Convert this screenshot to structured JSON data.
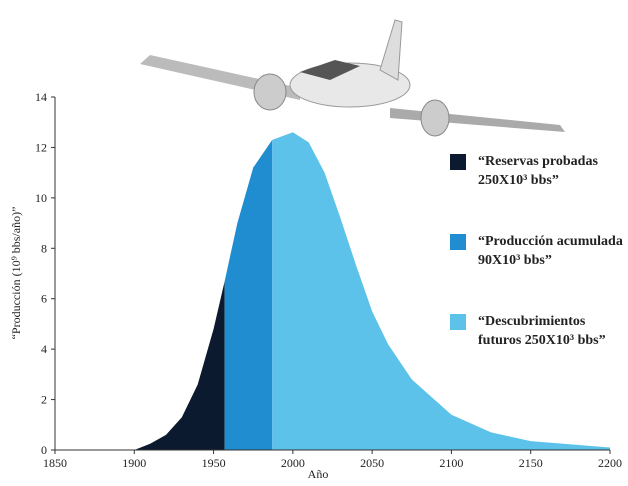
{
  "chart_data": {
    "type": "area",
    "xlabel": "Año",
    "ylabel": "“Producción (10⁹ bbs/año)”",
    "xlim": [
      1850,
      2200
    ],
    "xticks": [
      1850,
      1900,
      1950,
      2000,
      2050,
      2100,
      2150,
      2200
    ],
    "ylim": [
      0,
      14
    ],
    "yticks": [
      0,
      2,
      4,
      6,
      8,
      10,
      12,
      14
    ],
    "series": [
      {
        "name": "“Reservas probadas 250X10³ bbs”",
        "color": "#0b1a2e",
        "x": [
          1900,
          1910,
          1920,
          1930,
          1940,
          1950,
          1957
        ],
        "values": [
          0,
          0.25,
          0.6,
          1.3,
          2.6,
          4.8,
          6.7
        ]
      },
      {
        "name": "“Producción acumulada 90X10³ bbs”",
        "color": "#1f8dcf",
        "x": [
          1957,
          1965,
          1975,
          1987
        ],
        "values": [
          6.7,
          9,
          11.2,
          12.3
        ]
      },
      {
        "name": "“Descubrimientos futuros 250X10³ bbs”",
        "color": "#5cc2ea",
        "x": [
          1987,
          2000,
          2010,
          2020,
          2030,
          2040,
          2050,
          2060,
          2075,
          2100,
          2125,
          2150,
          2200
        ],
        "values": [
          12.3,
          12.6,
          12.2,
          11,
          9.2,
          7.3,
          5.5,
          4.2,
          2.8,
          1.4,
          0.7,
          0.35,
          0.1
        ]
      }
    ]
  }
}
